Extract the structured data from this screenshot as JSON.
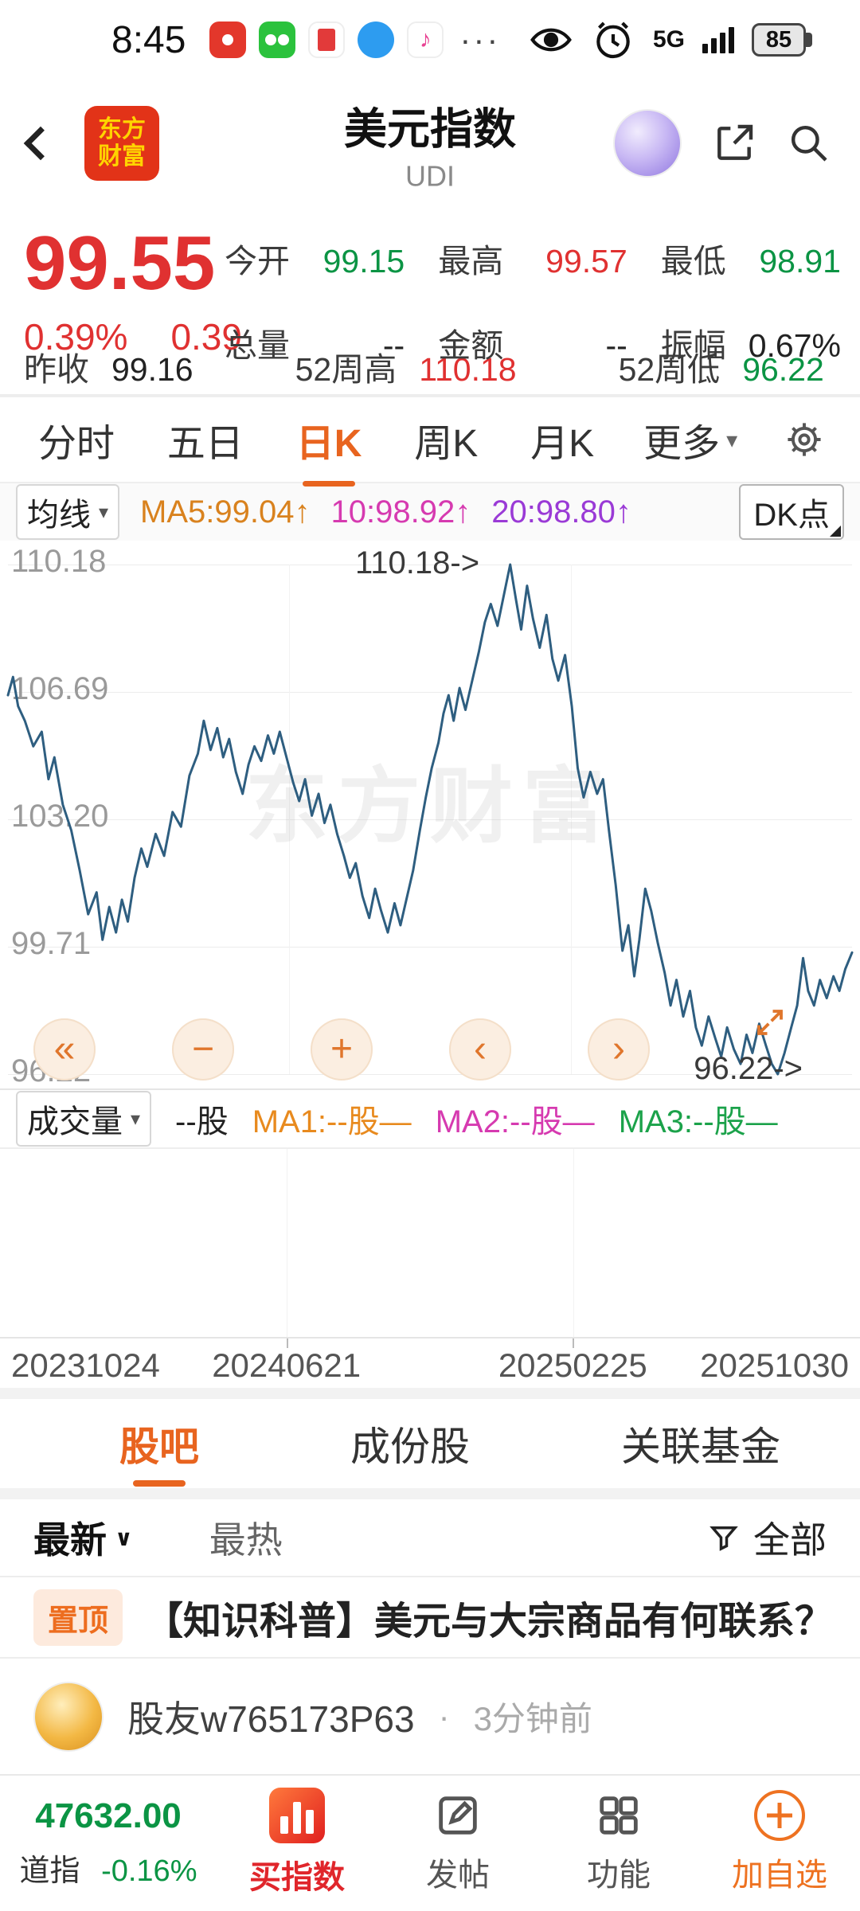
{
  "colors": {
    "up_red": "#e03131",
    "down_green": "#0b9444",
    "accent_orange": "#e8641f",
    "line_blue": "#2e5e80",
    "ma5": "#d9821e",
    "ma10": "#d63ab0",
    "ma20": "#9a3ad6"
  },
  "status_bar": {
    "time": "8:45",
    "more_dots": "···",
    "music_note": "♪",
    "network": "5G",
    "battery": "85"
  },
  "header": {
    "logo_top": "东方",
    "logo_bottom": "财富",
    "title": "美元指数",
    "subtitle": "UDI"
  },
  "quote": {
    "price": "99.55",
    "change_pct": "0.39%",
    "change_val": "0.39",
    "stats": [
      {
        "label": "今开",
        "value": "99.15"
      },
      {
        "label": "最高",
        "value": "99.57"
      },
      {
        "label": "最低",
        "value": "98.91"
      },
      {
        "label": "总量",
        "value": "--"
      },
      {
        "label": "金额",
        "value": "--"
      },
      {
        "label": "振幅",
        "value": "0.67%"
      }
    ],
    "bottom_stats": [
      {
        "label": "昨收",
        "value": "99.16"
      },
      {
        "label": "52周高",
        "value": "110.18"
      },
      {
        "label": "52周低",
        "value": "96.22"
      }
    ]
  },
  "period_tabs": {
    "items": [
      "分时",
      "五日",
      "日K",
      "周K",
      "月K"
    ],
    "more": "更多",
    "more_arrow": "▾"
  },
  "ma_bar": {
    "selector": "均线",
    "selector_arrow": "▾",
    "ma5": "MA5:99.04↑",
    "ma10": "10:98.92↑",
    "ma20": "20:98.80↑",
    "dk_button": "DK点"
  },
  "chart_controls": {
    "rewind": "«",
    "zoom_out": "−",
    "zoom_in": "+",
    "prev": "‹",
    "next": "›"
  },
  "volume_bar": {
    "selector": "成交量",
    "selector_arrow": "▾",
    "value": "--股",
    "ma1": "MA1:--股—",
    "ma2": "MA2:--股—",
    "ma3": "MA3:--股—"
  },
  "chart_data": {
    "type": "line",
    "title": "美元指数 日K",
    "ylim": [
      96.22,
      110.18
    ],
    "y_ticks": [
      "110.18",
      "106.69",
      "103.20",
      "99.71",
      "96.22"
    ],
    "x_ticks": [
      "20231024",
      "20240621",
      "20250225",
      "20251030"
    ],
    "peak_annotation": "110.18->",
    "low_annotation": "96.22->",
    "watermark": "东方财富",
    "line_color": "#2e5e80",
    "grid": true,
    "legend_position": "none",
    "series": [
      {
        "name": "美元指数",
        "points": [
          [
            0.0,
            106.6
          ],
          [
            0.006,
            107.1
          ],
          [
            0.012,
            106.3
          ],
          [
            0.02,
            105.9
          ],
          [
            0.03,
            105.2
          ],
          [
            0.04,
            105.6
          ],
          [
            0.048,
            104.3
          ],
          [
            0.055,
            104.9
          ],
          [
            0.065,
            103.6
          ],
          [
            0.075,
            102.9
          ],
          [
            0.085,
            101.8
          ],
          [
            0.095,
            100.6
          ],
          [
            0.105,
            101.2
          ],
          [
            0.112,
            99.9
          ],
          [
            0.12,
            100.8
          ],
          [
            0.128,
            100.1
          ],
          [
            0.135,
            101.0
          ],
          [
            0.142,
            100.4
          ],
          [
            0.15,
            101.6
          ],
          [
            0.158,
            102.4
          ],
          [
            0.165,
            101.9
          ],
          [
            0.175,
            102.8
          ],
          [
            0.185,
            102.2
          ],
          [
            0.195,
            103.4
          ],
          [
            0.205,
            103.0
          ],
          [
            0.215,
            104.4
          ],
          [
            0.225,
            105.0
          ],
          [
            0.232,
            105.9
          ],
          [
            0.24,
            105.1
          ],
          [
            0.248,
            105.7
          ],
          [
            0.255,
            104.9
          ],
          [
            0.262,
            105.4
          ],
          [
            0.27,
            104.5
          ],
          [
            0.278,
            103.9
          ],
          [
            0.285,
            104.7
          ],
          [
            0.292,
            105.2
          ],
          [
            0.3,
            104.8
          ],
          [
            0.308,
            105.5
          ],
          [
            0.315,
            105.0
          ],
          [
            0.322,
            105.6
          ],
          [
            0.33,
            104.9
          ],
          [
            0.338,
            104.2
          ],
          [
            0.345,
            103.7
          ],
          [
            0.352,
            104.3
          ],
          [
            0.36,
            103.3
          ],
          [
            0.368,
            103.9
          ],
          [
            0.375,
            103.1
          ],
          [
            0.382,
            103.6
          ],
          [
            0.39,
            102.8
          ],
          [
            0.398,
            102.2
          ],
          [
            0.405,
            101.6
          ],
          [
            0.412,
            102.0
          ],
          [
            0.42,
            101.1
          ],
          [
            0.428,
            100.5
          ],
          [
            0.435,
            101.3
          ],
          [
            0.442,
            100.7
          ],
          [
            0.45,
            100.1
          ],
          [
            0.458,
            100.9
          ],
          [
            0.465,
            100.3
          ],
          [
            0.472,
            101.0
          ],
          [
            0.48,
            101.8
          ],
          [
            0.488,
            102.9
          ],
          [
            0.495,
            103.8
          ],
          [
            0.502,
            104.6
          ],
          [
            0.51,
            105.3
          ],
          [
            0.516,
            106.1
          ],
          [
            0.522,
            106.6
          ],
          [
            0.528,
            105.9
          ],
          [
            0.535,
            106.8
          ],
          [
            0.542,
            106.2
          ],
          [
            0.55,
            107.0
          ],
          [
            0.558,
            107.8
          ],
          [
            0.565,
            108.6
          ],
          [
            0.572,
            109.1
          ],
          [
            0.58,
            108.5
          ],
          [
            0.588,
            109.4
          ],
          [
            0.595,
            110.18
          ],
          [
            0.602,
            109.2
          ],
          [
            0.608,
            108.4
          ],
          [
            0.615,
            109.6
          ],
          [
            0.622,
            108.7
          ],
          [
            0.63,
            107.9
          ],
          [
            0.638,
            108.8
          ],
          [
            0.645,
            107.6
          ],
          [
            0.652,
            107.0
          ],
          [
            0.66,
            107.7
          ],
          [
            0.668,
            106.3
          ],
          [
            0.675,
            104.6
          ],
          [
            0.682,
            103.8
          ],
          [
            0.69,
            104.5
          ],
          [
            0.698,
            103.9
          ],
          [
            0.705,
            104.3
          ],
          [
            0.712,
            102.9
          ],
          [
            0.72,
            101.4
          ],
          [
            0.728,
            99.6
          ],
          [
            0.735,
            100.3
          ],
          [
            0.742,
            98.9
          ],
          [
            0.748,
            99.9
          ],
          [
            0.755,
            101.3
          ],
          [
            0.762,
            100.7
          ],
          [
            0.77,
            99.8
          ],
          [
            0.778,
            99.0
          ],
          [
            0.785,
            98.1
          ],
          [
            0.792,
            98.8
          ],
          [
            0.8,
            97.8
          ],
          [
            0.808,
            98.5
          ],
          [
            0.815,
            97.5
          ],
          [
            0.822,
            97.0
          ],
          [
            0.83,
            97.8
          ],
          [
            0.838,
            97.2
          ],
          [
            0.845,
            96.7
          ],
          [
            0.852,
            97.5
          ],
          [
            0.86,
            96.9
          ],
          [
            0.868,
            96.5
          ],
          [
            0.875,
            97.3
          ],
          [
            0.882,
            96.8
          ],
          [
            0.89,
            97.6
          ],
          [
            0.898,
            97.0
          ],
          [
            0.905,
            96.5
          ],
          [
            0.912,
            96.22
          ],
          [
            0.92,
            96.8
          ],
          [
            0.928,
            97.5
          ],
          [
            0.935,
            98.1
          ],
          [
            0.942,
            99.4
          ],
          [
            0.948,
            98.5
          ],
          [
            0.955,
            98.1
          ],
          [
            0.962,
            98.8
          ],
          [
            0.97,
            98.3
          ],
          [
            0.978,
            98.9
          ],
          [
            0.985,
            98.5
          ],
          [
            0.992,
            99.1
          ],
          [
            1.0,
            99.55
          ]
        ]
      }
    ]
  },
  "section_tabs": {
    "items": [
      "股吧",
      "成份股",
      "关联基金"
    ]
  },
  "feed": {
    "sort_new": "最新",
    "sort_new_arrow": "∨",
    "sort_hot": "最热",
    "filter_label": "全部",
    "pin_badge": "置顶",
    "pin_title": "【知识科普】美元与大宗商品有何联系？",
    "post_user": "股友w765173P63",
    "post_sep": "·",
    "post_time": "3分钟前"
  },
  "bottom_nav": {
    "index_value": "47632.00",
    "index_name": "道指",
    "index_change": "-0.16%",
    "buy_label": "买指数",
    "post_label": "发帖",
    "features_label": "功能",
    "add_label": "加自选"
  }
}
